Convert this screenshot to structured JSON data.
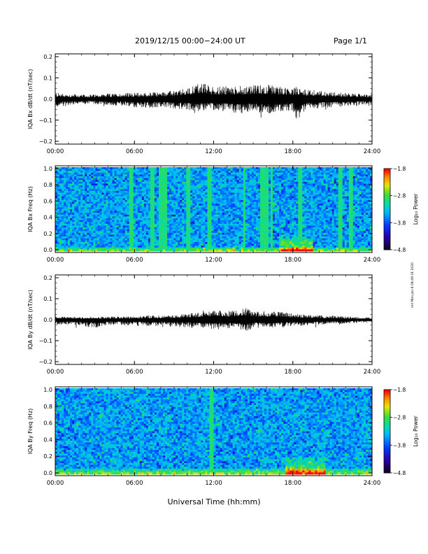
{
  "page": {
    "title": "2019/12/15  00:00−24:00 UT",
    "page_label": "Page 1/1",
    "xaxis_title": "Universal Time (hh:mm)",
    "footer_note": "mll  Mon Jan 6  08:49:31  2020"
  },
  "chart_data": [
    {
      "type": "line",
      "ylabel": "IQA Bx dB/dt (nT/sec)",
      "xlim": [
        0,
        24
      ],
      "ylim": [
        -0.2,
        0.2
      ],
      "yticks": [
        "0.2",
        "0.1",
        "0.0",
        "−0.1",
        "−0.2"
      ],
      "xticks": [
        "00:00",
        "06:00",
        "12:00",
        "18:00",
        "24:00"
      ],
      "series": [
        {
          "x": [
            0,
            1,
            2,
            3,
            4,
            5,
            6,
            7,
            8,
            9,
            10,
            10.5,
            11,
            11.5,
            12,
            13,
            14,
            15,
            16,
            17,
            18,
            18.3,
            19,
            20,
            21,
            22,
            23,
            24
          ],
          "y_upper": [
            0.03,
            0.025,
            0.02,
            0.022,
            0.025,
            0.028,
            0.03,
            0.03,
            0.035,
            0.04,
            0.05,
            0.07,
            0.08,
            0.07,
            0.06,
            0.06,
            0.06,
            0.065,
            0.07,
            0.06,
            0.05,
            0.06,
            0.045,
            0.04,
            0.035,
            0.03,
            0.025,
            0.02
          ],
          "y_lower": [
            -0.04,
            -0.03,
            -0.025,
            -0.025,
            -0.03,
            -0.035,
            -0.04,
            -0.045,
            -0.04,
            -0.045,
            -0.05,
            -0.06,
            -0.06,
            -0.05,
            -0.055,
            -0.06,
            -0.07,
            -0.06,
            -0.07,
            -0.06,
            -0.055,
            -0.1,
            -0.05,
            -0.045,
            -0.04,
            -0.035,
            -0.03,
            -0.025
          ]
        }
      ]
    },
    {
      "type": "heatmap",
      "ylabel": "IQA Bx Freq (Hz)",
      "xlim": [
        0,
        24
      ],
      "ylim": [
        0,
        1.0
      ],
      "yticks": [
        "1.0",
        "0.8",
        "0.6",
        "0.4",
        "0.2",
        "0.0"
      ],
      "xticks": [
        "00:00",
        "06:00",
        "12:00",
        "18:00",
        "24:00"
      ],
      "colorbar": {
        "label": "Log₁₀ Power",
        "ticks": [
          "−1.8",
          "−2.8",
          "−3.8",
          "−4.8"
        ],
        "range": [
          -4.8,
          -1.8
        ]
      },
      "vertical_bands_hours": [
        5.8,
        7.4,
        8.0,
        8.3,
        10.1,
        11.7,
        14.3,
        15.6,
        15.8,
        16.1,
        16.4,
        18.6,
        21.6,
        22.4
      ],
      "low_freq_enhancement": [
        {
          "x_start": 0,
          "x_end": 24,
          "f_max": 0.05
        },
        {
          "x_start": 17.0,
          "x_end": 19.5,
          "f_max": 0.2
        }
      ]
    },
    {
      "type": "line",
      "ylabel": "IQA By dB/dt (nT/sec)",
      "xlim": [
        0,
        24
      ],
      "ylim": [
        -0.2,
        0.2
      ],
      "yticks": [
        "0.2",
        "0.1",
        "0.0",
        "−0.1",
        "−0.2"
      ],
      "xticks": [
        "00:00",
        "06:00",
        "12:00",
        "18:00",
        "24:00"
      ],
      "series": [
        {
          "x": [
            0,
            1,
            2,
            3,
            4,
            5,
            6,
            7,
            8,
            9,
            10,
            11,
            11.5,
            12,
            12.5,
            13,
            14,
            14.5,
            15,
            16,
            17,
            18,
            19,
            20,
            21,
            22,
            23,
            24
          ],
          "y_upper": [
            0.015,
            0.015,
            0.012,
            0.015,
            0.015,
            0.015,
            0.015,
            0.02,
            0.02,
            0.02,
            0.03,
            0.035,
            0.04,
            0.05,
            0.045,
            0.04,
            0.05,
            0.06,
            0.04,
            0.04,
            0.04,
            0.03,
            0.025,
            0.02,
            0.02,
            0.015,
            0.012,
            0.01
          ],
          "y_lower": [
            -0.025,
            -0.025,
            -0.03,
            -0.04,
            -0.025,
            -0.025,
            -0.03,
            -0.03,
            -0.03,
            -0.035,
            -0.04,
            -0.04,
            -0.045,
            -0.045,
            -0.04,
            -0.04,
            -0.05,
            -0.06,
            -0.04,
            -0.04,
            -0.035,
            -0.03,
            -0.03,
            -0.025,
            -0.02,
            -0.02,
            -0.015,
            -0.015
          ]
        }
      ]
    },
    {
      "type": "heatmap",
      "ylabel": "IQA By Freq (Hz)",
      "xlim": [
        0,
        24
      ],
      "ylim": [
        0,
        1.0
      ],
      "yticks": [
        "1.0",
        "0.8",
        "0.6",
        "0.4",
        "0.2",
        "0.0"
      ],
      "xticks": [
        "00:00",
        "06:00",
        "12:00",
        "18:00",
        "24:00"
      ],
      "colorbar": {
        "label": "Log₁₀ Power",
        "ticks": [
          "−1.8",
          "−2.8",
          "−3.8",
          "−4.8"
        ],
        "range": [
          -4.8,
          -1.8
        ]
      },
      "vertical_bands_hours": [
        11.8
      ],
      "low_freq_enhancement": [
        {
          "x_start": 0,
          "x_end": 24,
          "f_max": 0.07
        },
        {
          "x_start": 17.5,
          "x_end": 20.5,
          "f_max": 0.2
        }
      ]
    }
  ]
}
